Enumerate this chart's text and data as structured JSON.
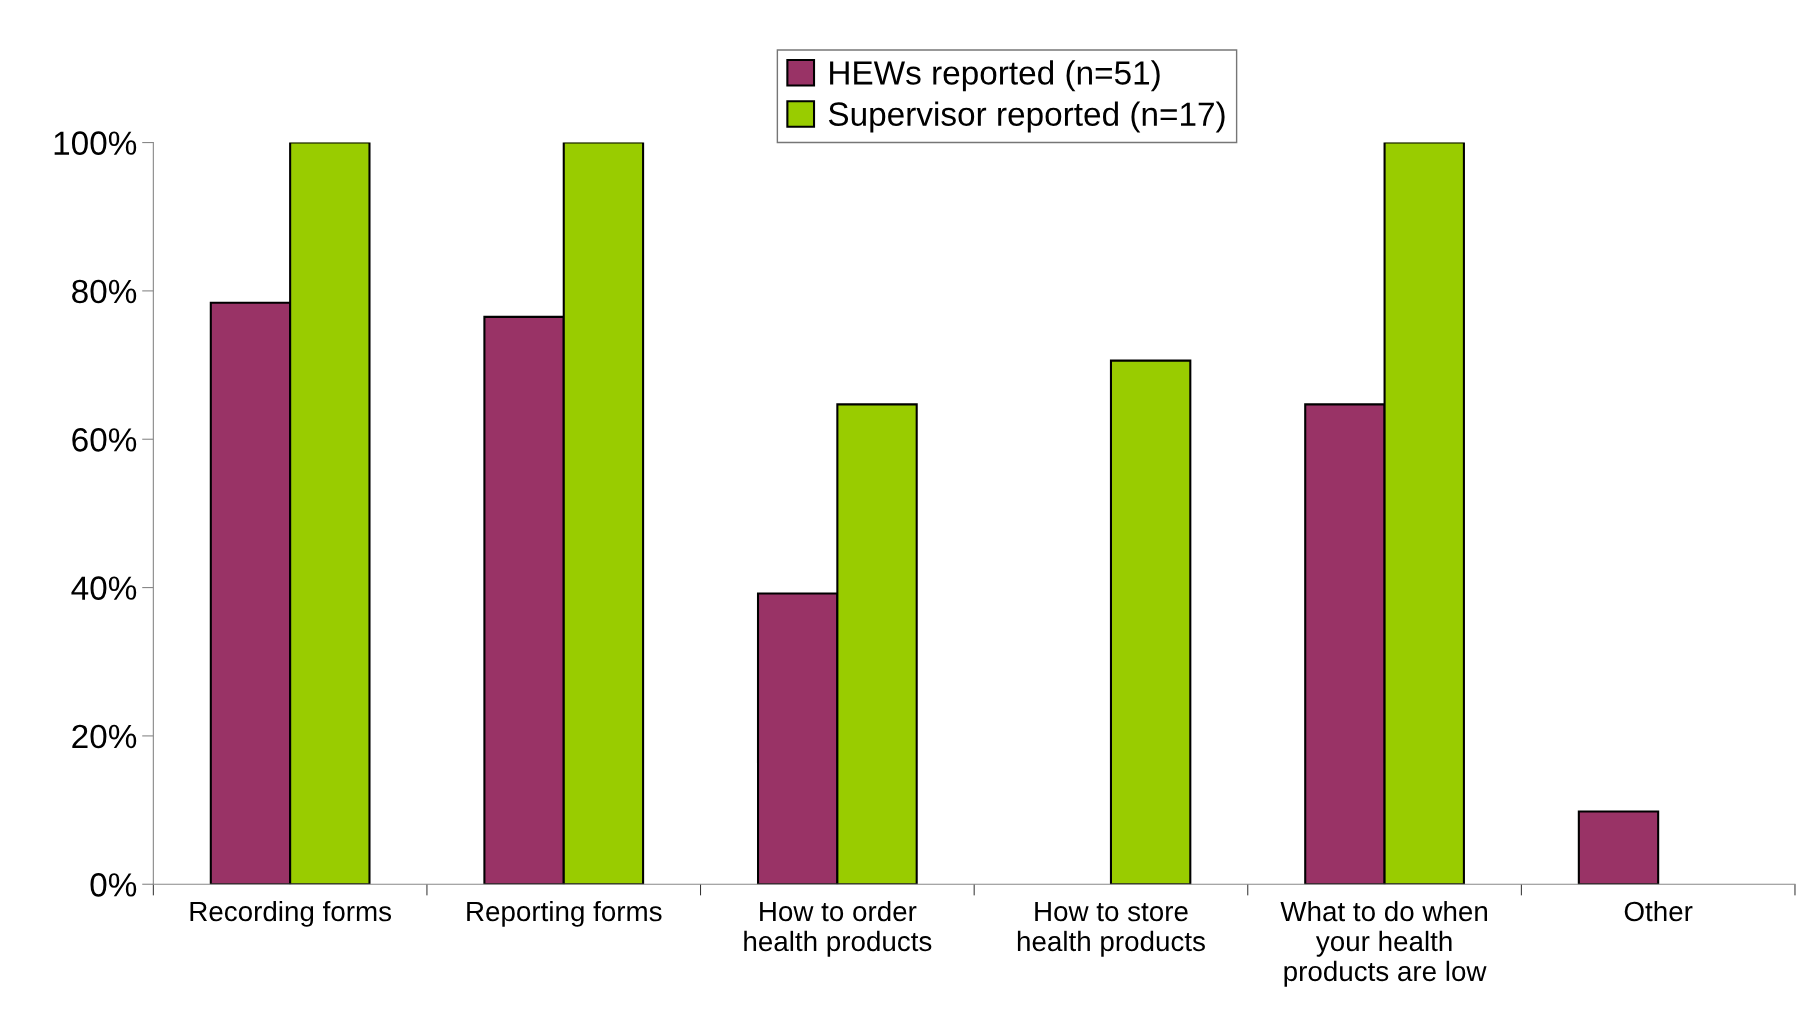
{
  "chart_data": {
    "type": "bar",
    "categories": [
      "Recording forms",
      "Reporting forms",
      "How to order\nhealth products",
      "How to store\nhealth products",
      "What to do when\nyour health\nproducts are low",
      "Other"
    ],
    "series": [
      {
        "name": "HEWs reported (n=51)",
        "color": "#993366",
        "values": [
          78.4,
          76.5,
          39.2,
          0,
          64.7,
          9.8
        ]
      },
      {
        "name": "Supervisor reported (n=17)",
        "color": "#99cc00",
        "values": [
          100,
          100,
          64.7,
          70.6,
          100,
          0
        ]
      }
    ],
    "ylim": [
      0,
      100
    ],
    "yticks": [
      {
        "value": 0,
        "label": "0%"
      },
      {
        "value": 20,
        "label": "20%"
      },
      {
        "value": 40,
        "label": "40%"
      },
      {
        "value": 60,
        "label": "60%"
      },
      {
        "value": 80,
        "label": "80%"
      },
      {
        "value": 100,
        "label": "100%"
      }
    ],
    "grid": false,
    "legend": "top"
  }
}
